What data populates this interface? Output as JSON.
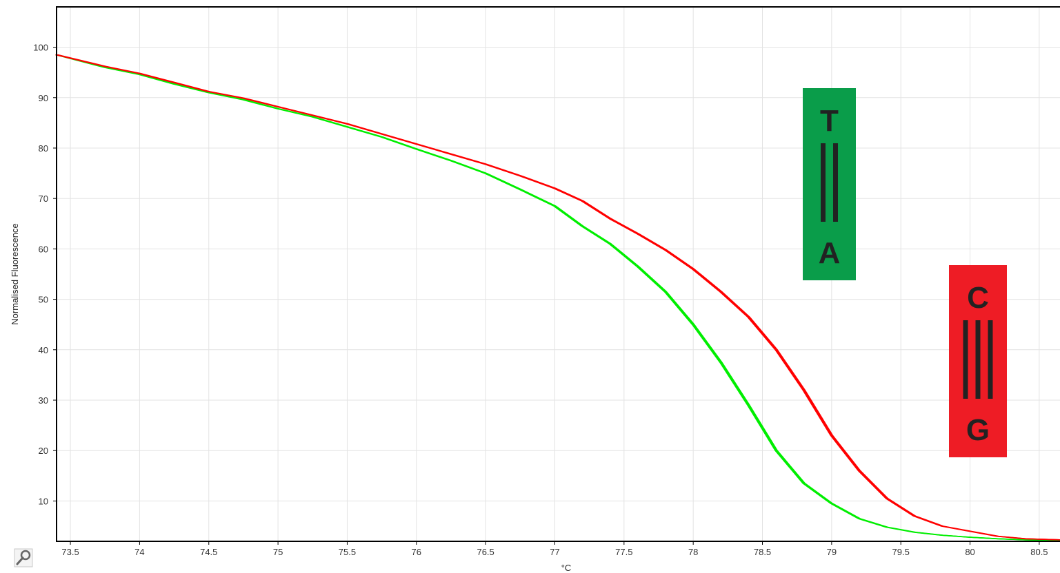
{
  "chart_data": {
    "type": "line",
    "title": "",
    "xlabel": "°C",
    "ylabel": "Normalised Fluorescence",
    "xlim": [
      73.4,
      80.65
    ],
    "ylim": [
      2,
      108
    ],
    "x_ticks": [
      "73.5",
      "74",
      "74.5",
      "75",
      "75.5",
      "76",
      "76.5",
      "77",
      "77.5",
      "78",
      "78.5",
      "79",
      "79.5",
      "80",
      "80.5"
    ],
    "y_ticks": [
      "10",
      "20",
      "30",
      "40",
      "50",
      "60",
      "70",
      "80",
      "90",
      "100"
    ],
    "grid": true,
    "series": [
      {
        "color": "#ff0000",
        "x": [
          73.4,
          73.75,
          74.0,
          74.25,
          74.5,
          74.75,
          75.0,
          75.25,
          75.5,
          75.75,
          76.0,
          76.25,
          76.5,
          76.75,
          77.0,
          77.2,
          77.4,
          77.6,
          77.8,
          78.0,
          78.2,
          78.4,
          78.6,
          78.8,
          79.0,
          79.2,
          79.4,
          79.6,
          79.8,
          80.0,
          80.2,
          80.4,
          80.65
        ],
        "values": [
          98.5,
          96.2,
          94.8,
          93.0,
          91.2,
          89.9,
          88.2,
          86.5,
          84.8,
          82.8,
          80.8,
          78.8,
          76.8,
          74.5,
          72.0,
          69.5,
          66.0,
          63.0,
          59.8,
          56.0,
          51.5,
          46.5,
          40.0,
          32.0,
          23.0,
          16.0,
          10.5,
          7.0,
          5.0,
          4.0,
          3.0,
          2.5,
          2.3
        ]
      },
      {
        "color": "#00ee00",
        "x": [
          73.4,
          73.75,
          74.0,
          74.25,
          74.5,
          74.75,
          75.0,
          75.25,
          75.5,
          75.75,
          76.0,
          76.25,
          76.5,
          76.75,
          77.0,
          77.2,
          77.4,
          77.6,
          77.8,
          78.0,
          78.2,
          78.4,
          78.6,
          78.8,
          79.0,
          79.2,
          79.4,
          79.6,
          79.8,
          80.0,
          80.2,
          80.4,
          80.65
        ],
        "values": [
          98.5,
          96.0,
          94.6,
          92.7,
          91.0,
          89.6,
          87.8,
          86.2,
          84.2,
          82.2,
          79.8,
          77.5,
          75.0,
          71.8,
          68.5,
          64.5,
          61.0,
          56.5,
          51.5,
          45.0,
          37.5,
          29.0,
          20.0,
          13.5,
          9.5,
          6.5,
          4.8,
          3.8,
          3.2,
          2.8,
          2.5,
          2.3,
          2.2
        ]
      }
    ],
    "annotations": [
      {
        "top": "T",
        "bottom": "A",
        "bars": "||",
        "color": "#0a9d4a"
      },
      {
        "top": "C",
        "bottom": "G",
        "bars": "|||",
        "color": "#ee1c25"
      }
    ]
  },
  "toolbar": {
    "icon": "settings-tool-icon"
  }
}
